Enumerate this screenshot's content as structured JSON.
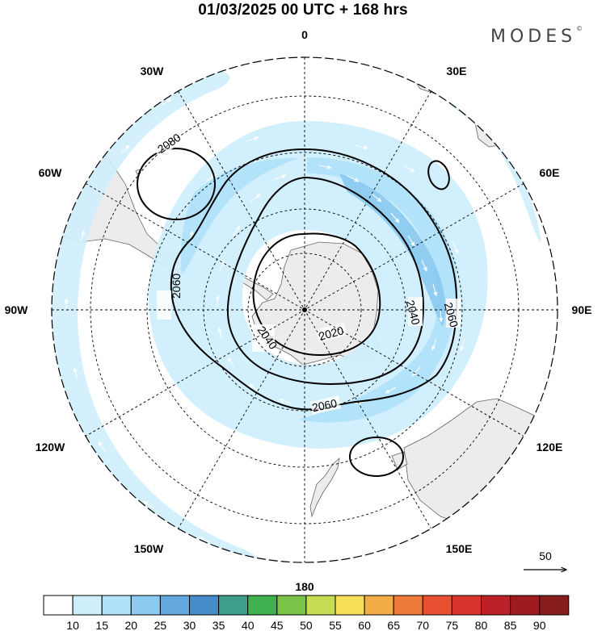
{
  "header": {
    "title": "01/03/2025  00 UTC  + 168 hrs",
    "brand": "MODES",
    "brand_mark": "©"
  },
  "map": {
    "projection": "south-polar-stereographic",
    "meridian_labels": [
      "0",
      "30E",
      "60E",
      "90E",
      "120E",
      "150E",
      "180",
      "150W",
      "120W",
      "90W",
      "60W",
      "30W"
    ],
    "contour_labels": [
      "2080",
      "2060",
      "2060",
      "2040",
      "2040",
      "2020",
      "2060"
    ],
    "vector_reference": "50",
    "colors": {
      "ocean": "#ffffff",
      "land": "#ececec",
      "coast": "#555555",
      "grid": "#000000",
      "contour": "#000000"
    }
  },
  "colorbar": {
    "ticks": [
      "10",
      "15",
      "20",
      "25",
      "30",
      "35",
      "40",
      "45",
      "50",
      "55",
      "60",
      "65",
      "70",
      "75",
      "80",
      "85",
      "90"
    ],
    "colors": [
      "#ffffff",
      "#cfeefc",
      "#b0e2fa",
      "#8ccaf0",
      "#63a9e0",
      "#458dc8",
      "#3e9e8c",
      "#3fb24f",
      "#79c447",
      "#c6dc52",
      "#f7e058",
      "#f3ad47",
      "#ee7a3a",
      "#e75030",
      "#d9342b",
      "#bc2128",
      "#9e1b20",
      "#871d1d"
    ]
  }
}
